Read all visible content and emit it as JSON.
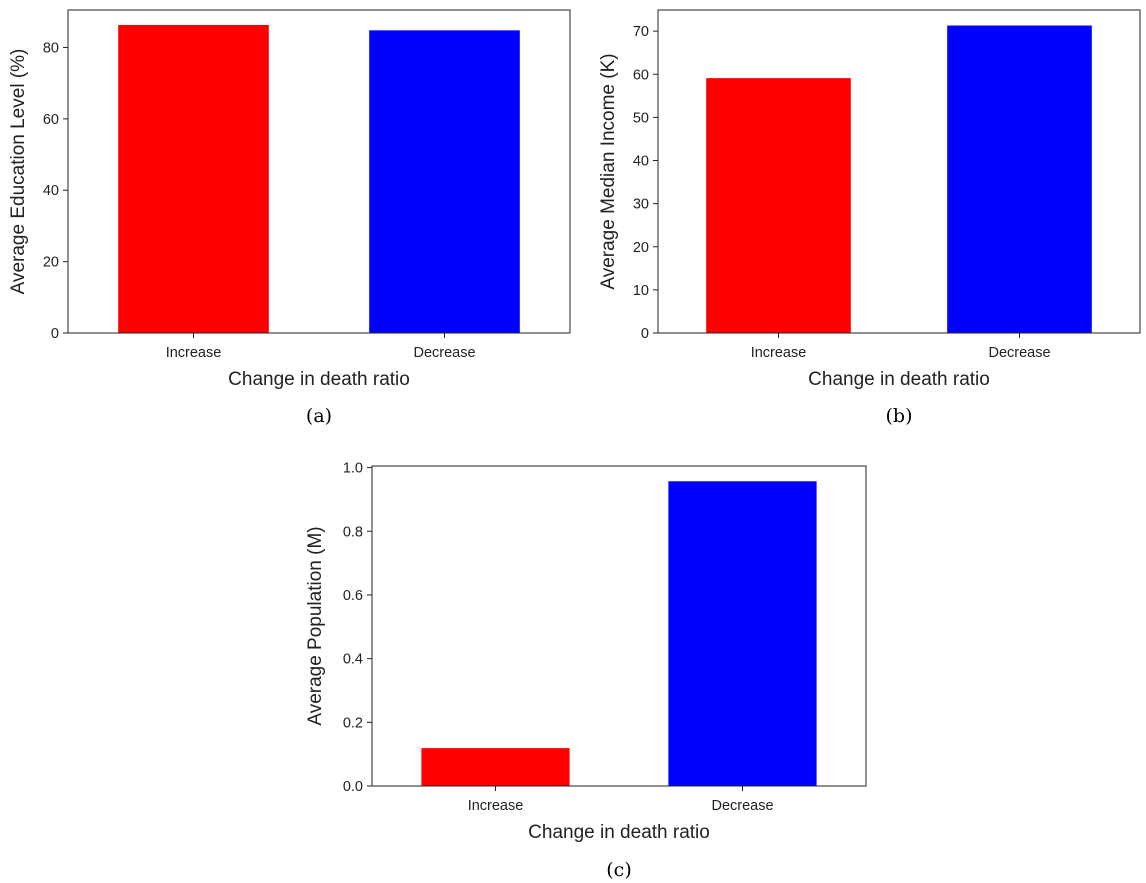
{
  "chart_data": [
    {
      "type": "bar",
      "panel_label": "(a)",
      "categories": [
        "Increase",
        "Decrease"
      ],
      "values": [
        86.3,
        84.8
      ],
      "colors": [
        "#ff0000",
        "#0000ff"
      ],
      "xlabel": "Change in death ratio",
      "ylabel": "Average Education Level (%)",
      "ylim": [
        0,
        90.5
      ],
      "yticks": [
        0,
        20,
        40,
        60,
        80
      ],
      "grid": false,
      "legend": "none"
    },
    {
      "type": "bar",
      "panel_label": "(b)",
      "categories": [
        "Increase",
        "Decrease"
      ],
      "values": [
        59.1,
        71.3
      ],
      "colors": [
        "#ff0000",
        "#0000ff"
      ],
      "xlabel": "Change in death ratio",
      "ylabel": "Average Median Income (K)",
      "ylim": [
        0,
        74.9
      ],
      "yticks": [
        0,
        10,
        20,
        30,
        40,
        50,
        60,
        70
      ],
      "grid": false,
      "legend": "none"
    },
    {
      "type": "bar",
      "panel_label": "(c)",
      "categories": [
        "Increase",
        "Decrease"
      ],
      "values": [
        0.119,
        0.957
      ],
      "colors": [
        "#ff0000",
        "#0000ff"
      ],
      "xlabel": "Change in death ratio",
      "ylabel": "Average Population (M)",
      "ylim": [
        0,
        1.005
      ],
      "yticks": [
        "0.0",
        "0.2",
        "0.4",
        "0.6",
        "0.8",
        "1.0"
      ],
      "grid": false,
      "legend": "none"
    }
  ]
}
